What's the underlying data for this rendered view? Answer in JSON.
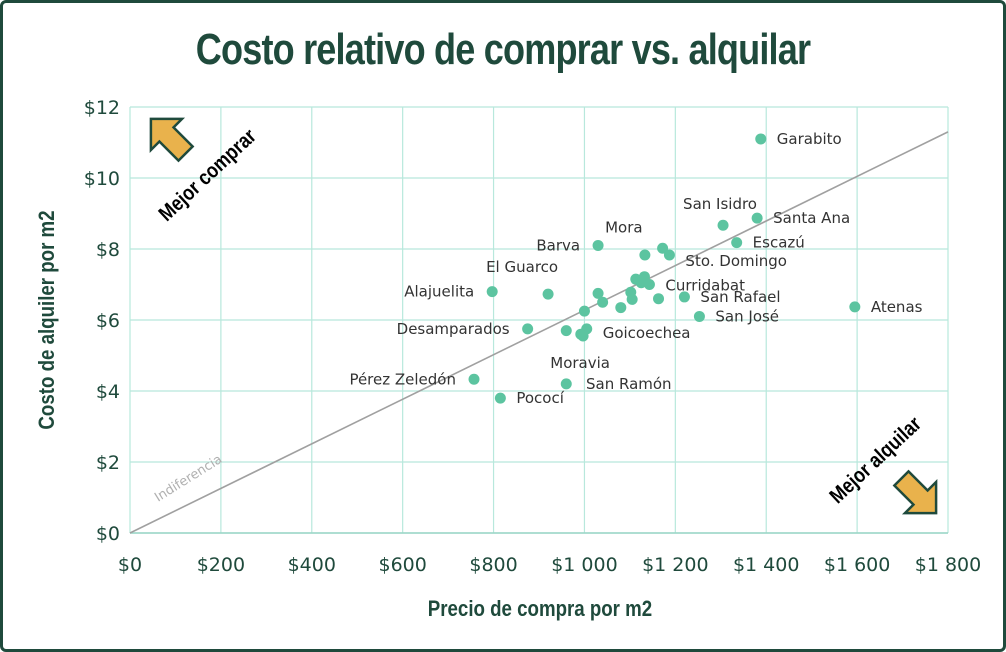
{
  "chart_data": {
    "type": "scatter",
    "title": "Costo relativo de comprar vs. alquilar",
    "xlabel": "Precio de compra por m2",
    "ylabel": "Costo de alquiler por m2",
    "xlim": [
      0,
      1800
    ],
    "ylim": [
      0,
      12
    ],
    "xticks": [
      0,
      200,
      400,
      600,
      800,
      1000,
      1200,
      1400,
      1600,
      1800
    ],
    "yticks": [
      0,
      2,
      4,
      6,
      8,
      10,
      12
    ],
    "xtick_labels": [
      "$0",
      "$200",
      "$400",
      "$600",
      "$800",
      "$1 000",
      "$1 200",
      "$1 400",
      "$1 600",
      "$1 800"
    ],
    "ytick_labels": [
      "$0",
      "$2",
      "$4",
      "$6",
      "$8",
      "$10",
      "$12"
    ],
    "grid": true,
    "marker_color": "#5cc4a0",
    "grid_color": "#b8e8dc",
    "reference_line": {
      "label": "Indiferencia",
      "from": [
        0,
        0
      ],
      "to": [
        1800,
        11.3
      ],
      "color": "#a0a0a0"
    },
    "annotations": [
      {
        "text": "Mejor comprar",
        "corner": "top-left"
      },
      {
        "text": "Mejor alquilar",
        "corner": "bottom-right"
      }
    ],
    "points": [
      {
        "x": 1388,
        "y": 11.1,
        "label": "Garabito"
      },
      {
        "x": 1305,
        "y": 8.67,
        "label": "San Isidro"
      },
      {
        "x": 1380,
        "y": 8.87,
        "label": "Santa Ana"
      },
      {
        "x": 1172,
        "y": 8.02,
        "label": "Mora"
      },
      {
        "x": 1030,
        "y": 8.1,
        "label": "Barva"
      },
      {
        "x": 1335,
        "y": 8.18,
        "label": "Escazú"
      },
      {
        "x": 1187,
        "y": 7.83,
        "label": "Sto. Domingo"
      },
      {
        "x": 1133,
        "y": 7.83,
        "label": ""
      },
      {
        "x": 920,
        "y": 6.73,
        "label": "El Guarco"
      },
      {
        "x": 1113,
        "y": 7.15,
        "label": ""
      },
      {
        "x": 1132,
        "y": 7.22,
        "label": ""
      },
      {
        "x": 1125,
        "y": 7.05,
        "label": ""
      },
      {
        "x": 1143,
        "y": 7.0,
        "label": "Curridabat"
      },
      {
        "x": 797,
        "y": 6.8,
        "label": "Alajuelita"
      },
      {
        "x": 1030,
        "y": 6.75,
        "label": ""
      },
      {
        "x": 1102,
        "y": 6.78,
        "label": ""
      },
      {
        "x": 1040,
        "y": 6.5,
        "label": ""
      },
      {
        "x": 1105,
        "y": 6.58,
        "label": ""
      },
      {
        "x": 1080,
        "y": 6.35,
        "label": ""
      },
      {
        "x": 1163,
        "y": 6.6,
        "label": ""
      },
      {
        "x": 1220,
        "y": 6.65,
        "label": "San Rafael"
      },
      {
        "x": 1000,
        "y": 6.25,
        "label": ""
      },
      {
        "x": 1253,
        "y": 6.1,
        "label": "San José"
      },
      {
        "x": 1595,
        "y": 6.37,
        "label": "Atenas"
      },
      {
        "x": 875,
        "y": 5.75,
        "label": "Desamparados"
      },
      {
        "x": 960,
        "y": 5.7,
        "label": ""
      },
      {
        "x": 1005,
        "y": 5.75,
        "label": "Goicoechea"
      },
      {
        "x": 992,
        "y": 5.6,
        "label": ""
      },
      {
        "x": 997,
        "y": 5.55,
        "label": ""
      },
      {
        "x": 960,
        "y": 4.2,
        "label": "Moravia"
      },
      {
        "x": 757,
        "y": 4.33,
        "label": "Pérez Zeledón"
      },
      {
        "x": 815,
        "y": 3.8,
        "label": "Pococí"
      }
    ],
    "extra_labels": [
      {
        "text": "San Ramón"
      }
    ]
  }
}
